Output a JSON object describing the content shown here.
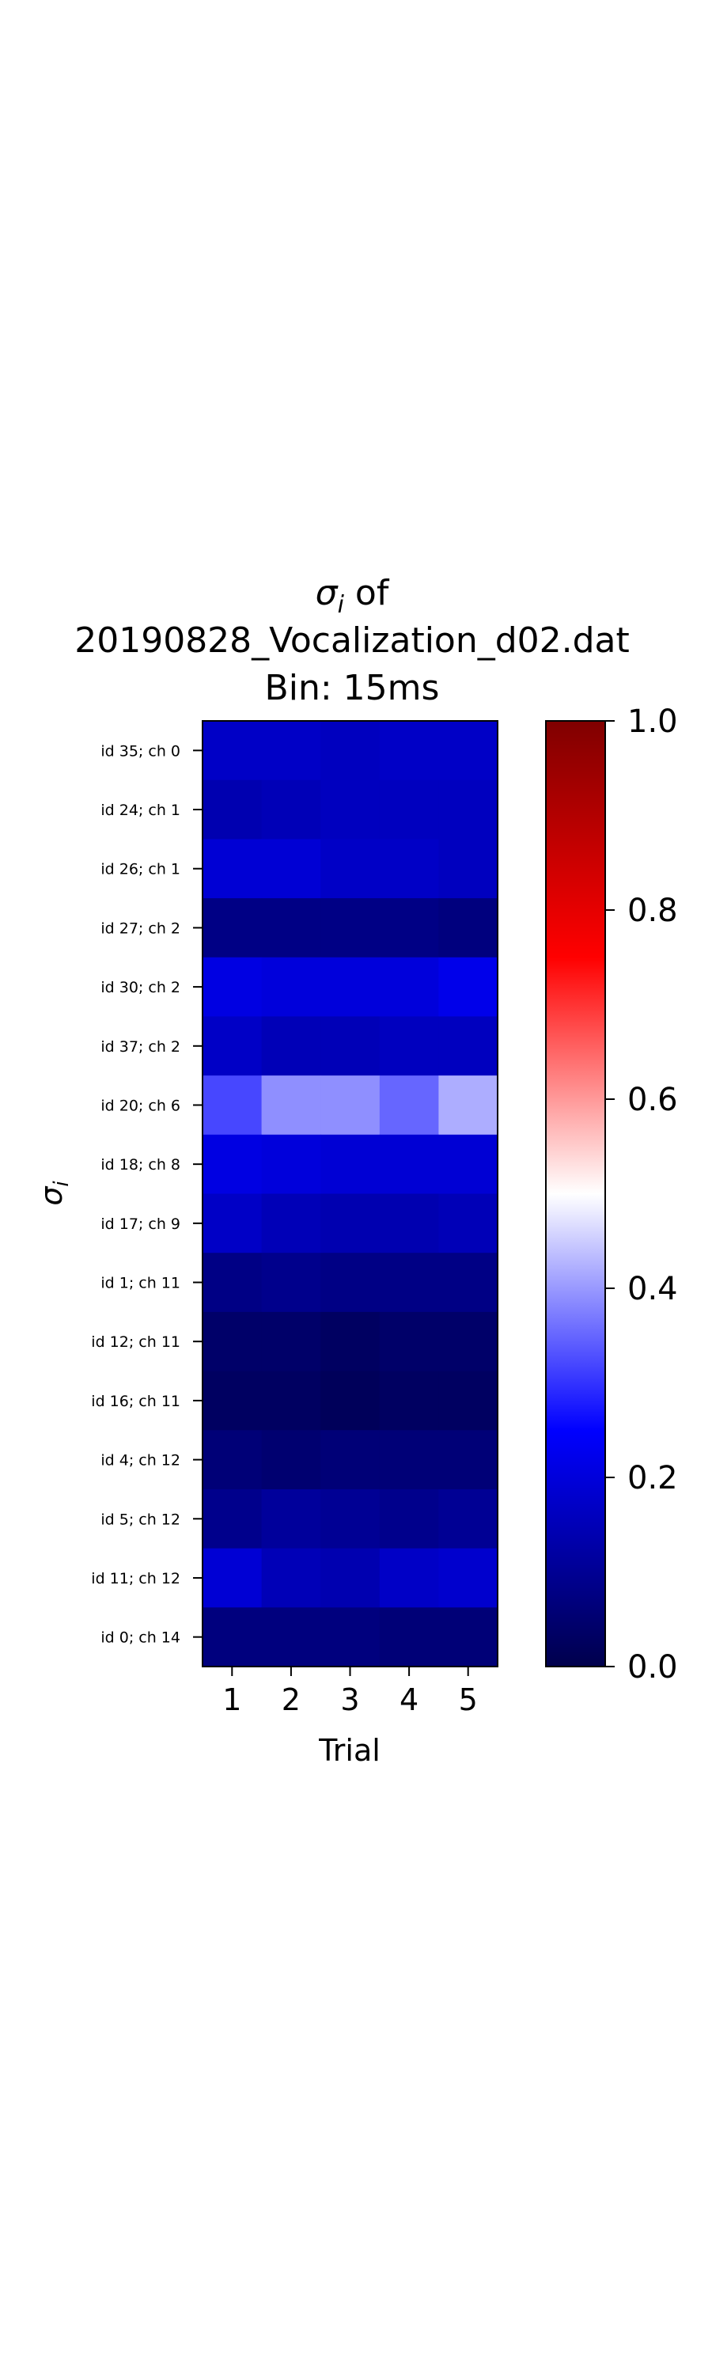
{
  "chart_data": {
    "type": "heatmap",
    "title_line1_prefix": "σ",
    "title_line1_sub": "i",
    "title_line1_suffix": " of",
    "title_line2": "20190828_Vocalization_d02.dat",
    "title_line3": "Bin: 15ms",
    "xlabel": "Trial",
    "ylabel_symbol": "σ",
    "ylabel_sub": "i",
    "x_categories": [
      "1",
      "2",
      "3",
      "4",
      "5"
    ],
    "y_categories": [
      "id 35; ch 0",
      "id 24; ch 1",
      "id 26; ch 1",
      "id 27; ch 2",
      "id 30; ch 2",
      "id 37; ch 2",
      "id 20; ch 6",
      "id 18; ch 8",
      "id 17; ch 9",
      "id 1; ch 11",
      "id 12; ch 11",
      "id 16; ch 11",
      "id 4; ch 12",
      "id 5; ch 12",
      "id 11; ch 12",
      "id 0; ch 14"
    ],
    "values": [
      [
        0.17,
        0.17,
        0.16,
        0.17,
        0.17
      ],
      [
        0.14,
        0.15,
        0.16,
        0.16,
        0.16
      ],
      [
        0.19,
        0.19,
        0.17,
        0.17,
        0.16
      ],
      [
        0.08,
        0.08,
        0.08,
        0.08,
        0.07
      ],
      [
        0.21,
        0.2,
        0.2,
        0.2,
        0.22
      ],
      [
        0.17,
        0.15,
        0.15,
        0.16,
        0.16
      ],
      [
        0.32,
        0.39,
        0.39,
        0.35,
        0.42
      ],
      [
        0.21,
        0.2,
        0.19,
        0.19,
        0.19
      ],
      [
        0.17,
        0.15,
        0.14,
        0.14,
        0.15
      ],
      [
        0.08,
        0.09,
        0.08,
        0.08,
        0.08
      ],
      [
        0.04,
        0.04,
        0.03,
        0.04,
        0.04
      ],
      [
        0.03,
        0.03,
        0.02,
        0.03,
        0.03
      ],
      [
        0.06,
        0.05,
        0.06,
        0.06,
        0.06
      ],
      [
        0.09,
        0.11,
        0.1,
        0.09,
        0.1
      ],
      [
        0.19,
        0.15,
        0.14,
        0.17,
        0.18
      ],
      [
        0.07,
        0.07,
        0.07,
        0.06,
        0.06
      ]
    ],
    "colorbar": {
      "range": [
        0.0,
        1.0
      ],
      "ticks": [
        "0.0",
        "0.2",
        "0.4",
        "0.6",
        "0.8",
        "1.0"
      ],
      "colormap": "seismic"
    }
  }
}
